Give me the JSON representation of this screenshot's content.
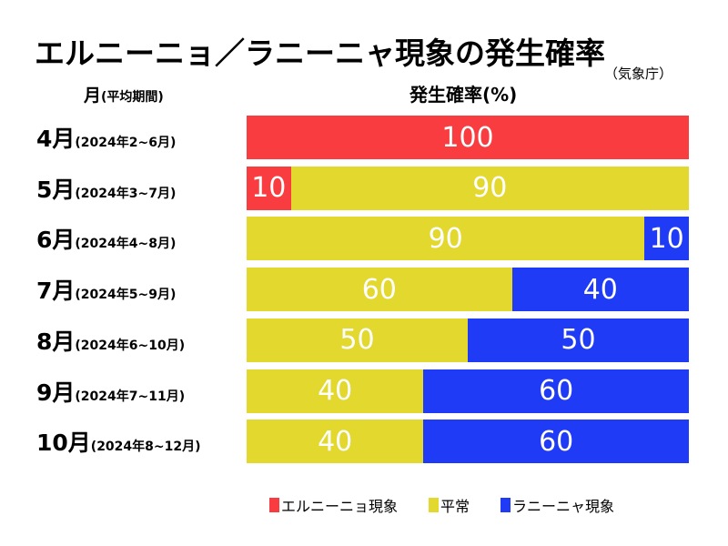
{
  "chart_data": {
    "type": "bar",
    "stacked": true,
    "orientation": "horizontal",
    "title": "エルニーニョ／ラニーニャ現象の発生確率",
    "source": "（気象庁）",
    "ylabel_main": "月",
    "ylabel_sub": "(平均期間)",
    "xlabel": "発生確率(%)",
    "xlim": [
      0,
      100
    ],
    "categories": [
      {
        "month": "4月",
        "period": "(2024年2~6月)"
      },
      {
        "month": "5月",
        "period": "(2024年3~7月)"
      },
      {
        "month": "6月",
        "period": "(2024年4~8月)"
      },
      {
        "month": "7月",
        "period": "(2024年5~9月)"
      },
      {
        "month": "8月",
        "period": "(2024年6~10月)"
      },
      {
        "month": "9月",
        "period": "(2024年7~11月)"
      },
      {
        "month": "10月",
        "period": "(2024年8~12月)"
      }
    ],
    "series": [
      {
        "name": "エルニーニョ現象",
        "color": "#f93c3f",
        "values": [
          100,
          10,
          0,
          0,
          0,
          0,
          0
        ]
      },
      {
        "name": "平常",
        "color": "#e3d82e",
        "values": [
          0,
          90,
          90,
          60,
          50,
          40,
          40
        ]
      },
      {
        "name": "ラニーニャ現象",
        "color": "#1f3bf5",
        "values": [
          0,
          0,
          10,
          40,
          50,
          60,
          60
        ]
      }
    ],
    "legend": "bottom"
  }
}
